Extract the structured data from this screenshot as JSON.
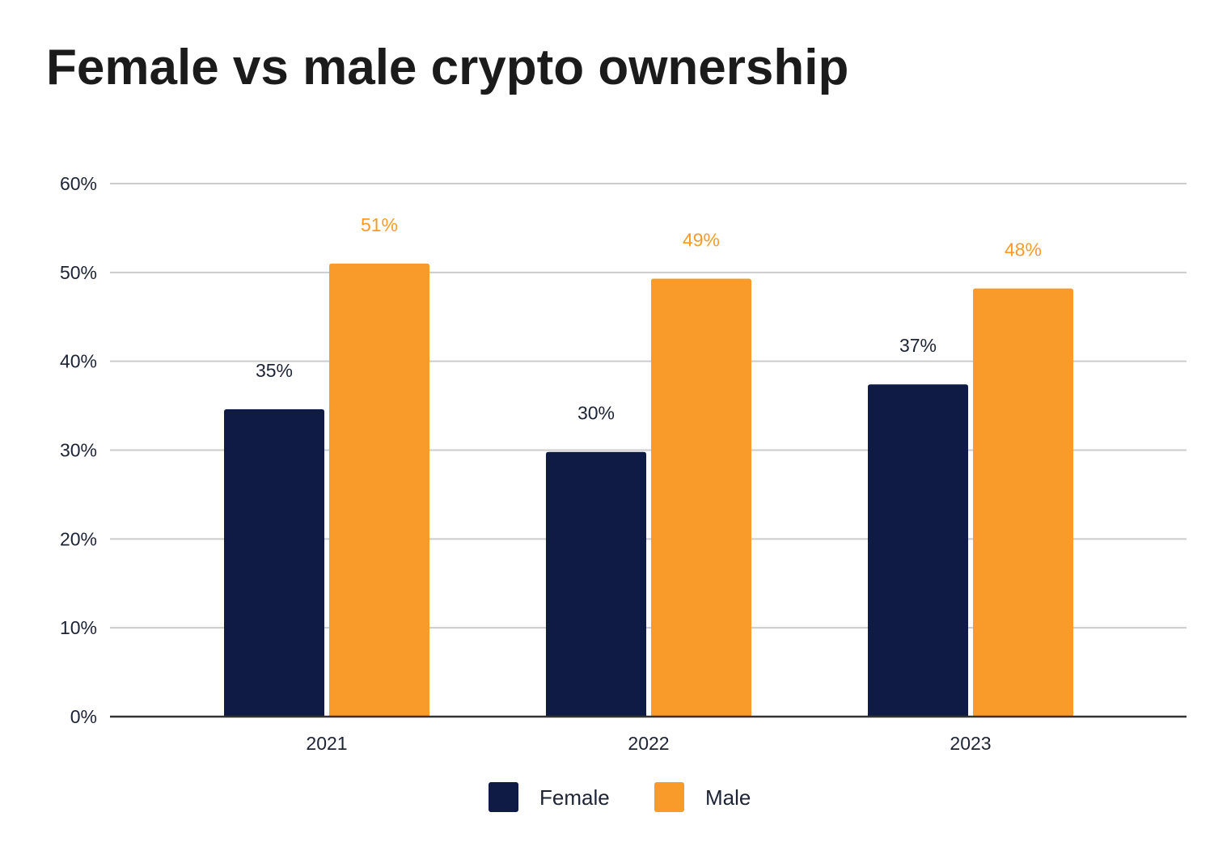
{
  "title": "Female vs male crypto ownership",
  "chart_data": {
    "type": "bar",
    "title": "Female vs male crypto ownership",
    "categories": [
      "2021",
      "2022",
      "2023"
    ],
    "series": [
      {
        "name": "Female",
        "values": [
          34.6,
          29.8,
          37.4
        ],
        "labels": [
          "35%",
          "30%",
          "37%"
        ],
        "color": "#0f1b45"
      },
      {
        "name": "Male",
        "values": [
          51.0,
          49.3,
          48.2
        ],
        "labels": [
          "51%",
          "49%",
          "48%"
        ],
        "color": "#f99b2a"
      }
    ],
    "y_ticks": [
      "0%",
      "10%",
      "20%",
      "30%",
      "40%",
      "50%",
      "60%"
    ],
    "ylim": [
      0,
      60
    ],
    "xlabel": "",
    "ylabel": "",
    "grid": true,
    "legend": "bottom-center"
  }
}
